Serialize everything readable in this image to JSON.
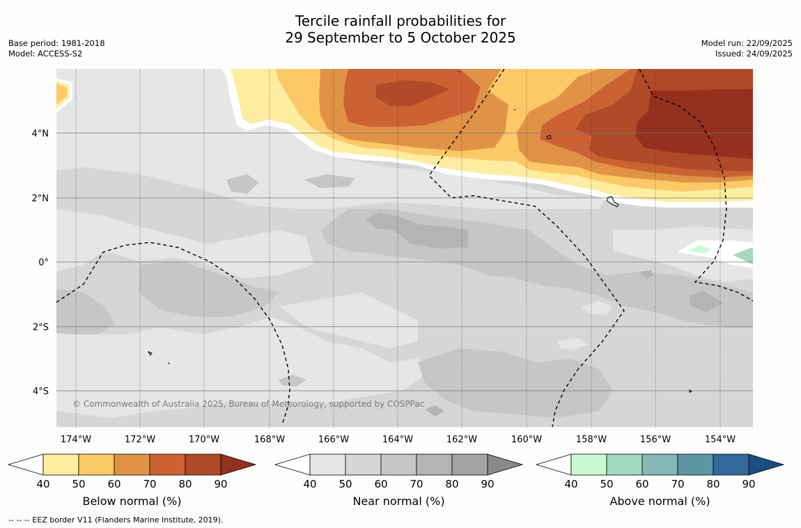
{
  "title_line1": "Tercile rainfall probabilities for",
  "title_line2": "29 September to 5 October 2025",
  "base_period": "Base period: 1981-2018",
  "model": "Model: ACCESS-S2",
  "model_run": "Model run: 22/09/2025",
  "issued": "Issued: 24/09/2025",
  "copyright": "© Commonwealth of Australia 2025, Bureau of Meteorology, supported by COSPPac",
  "footer": "--  --  -- EEZ border V11 (Flanders Marine Institute, 2019).",
  "map": {
    "lon_range": [
      -174.6,
      -153.1
    ],
    "lat_range": [
      -5.2,
      5.9
    ],
    "lon_ticks": [
      "174°W",
      "172°W",
      "170°W",
      "168°W",
      "166°W",
      "164°W",
      "162°W",
      "160°W",
      "158°W",
      "156°W",
      "154°W"
    ],
    "lat_ticks": [
      "4°N",
      "2°N",
      "0°",
      "2°S",
      "4°S"
    ]
  },
  "colorbars": [
    {
      "label": "Below normal (%)",
      "ticks": [
        "40",
        "50",
        "60",
        "70",
        "80",
        "90"
      ],
      "colors": [
        "#ffffff",
        "#feeca0",
        "#fdc966",
        "#e09347",
        "#cc6233",
        "#b04a27",
        "#94301e"
      ]
    },
    {
      "label": "Near normal (%)",
      "ticks": [
        "40",
        "50",
        "60",
        "70",
        "80",
        "90"
      ],
      "colors": [
        "#ffffff",
        "#e6e6e6",
        "#d6d6d6",
        "#c6c6c6",
        "#b4b4b4",
        "#a4a4a4",
        "#888888"
      ]
    },
    {
      "label": "Above normal (%)",
      "ticks": [
        "40",
        "50",
        "60",
        "70",
        "80",
        "90"
      ],
      "colors": [
        "#ffffff",
        "#c8fcd0",
        "#a2d9c0",
        "#84b8b4",
        "#5f94a2",
        "#336a9c",
        "#1a4e80"
      ]
    }
  ],
  "colors": {
    "near40": "#e6e6e6",
    "near50": "#d6d6d6",
    "near60": "#c6c6c6",
    "near70": "#b4b4b4",
    "near80": "#a4a4a4",
    "below40": "#feeca0",
    "below50": "#fdc966",
    "below60": "#e09347",
    "below70": "#cc6233",
    "below80": "#b04a27",
    "below90": "#94301e",
    "above40": "#c8fcd0",
    "above50": "#a2d9c0",
    "above60": "#84b8b4"
  }
}
